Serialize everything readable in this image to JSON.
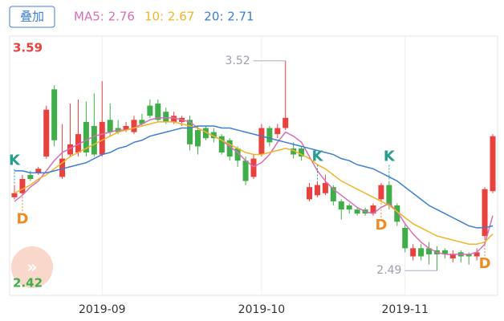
{
  "chart_data": {
    "type": "candlestick",
    "button": "叠加",
    "categories": [
      null,
      null,
      null,
      null,
      null,
      null,
      null,
      null,
      null,
      null,
      null,
      "2019-09",
      null,
      null,
      null,
      null,
      null,
      null,
      null,
      null,
      null,
      null,
      null,
      null,
      null,
      null,
      null,
      null,
      null,
      null,
      null,
      "2019-10",
      null,
      null,
      null,
      null,
      null,
      null,
      null,
      null,
      null,
      null,
      null,
      null,
      null,
      null,
      null,
      null,
      null,
      "2019-11",
      null,
      null,
      null,
      null,
      null,
      null,
      null,
      null,
      null,
      null,
      null
    ],
    "open": [
      2.85,
      2.87,
      2.96,
      2.97,
      3.05,
      3.38,
      2.95,
      3.06,
      3.07,
      3.22,
      3.2,
      3.06,
      3.23,
      3.19,
      3.18,
      3.17,
      3.23,
      3.3,
      3.31,
      3.27,
      3.22,
      3.22,
      3.23,
      3.18,
      3.19,
      3.17,
      3.15,
      3.13,
      3.09,
      3.03,
      2.95,
      3.06,
      3.19,
      3.16,
      3.19,
      3.09,
      3.09,
      2.84,
      2.86,
      2.87,
      2.9,
      2.83,
      2.81,
      2.79,
      2.79,
      2.77,
      2.84,
      2.91,
      2.81,
      2.7,
      2.56,
      2.6,
      2.6,
      2.59,
      2.59,
      2.55,
      2.58,
      2.57,
      2.56,
      2.66,
      2.88
    ],
    "high": [
      2.91,
      2.96,
      2.98,
      3.0,
      3.3,
      3.4,
      3.21,
      3.31,
      3.33,
      3.32,
      3.36,
      3.42,
      3.31,
      3.23,
      3.22,
      3.25,
      3.26,
      3.33,
      3.33,
      3.29,
      3.27,
      3.25,
      3.25,
      3.2,
      3.2,
      3.19,
      3.16,
      3.14,
      3.1,
      3.05,
      3.06,
      3.21,
      3.2,
      3.21,
      3.52,
      3.12,
      3.1,
      2.92,
      2.93,
      2.96,
      2.91,
      2.84,
      2.82,
      2.8,
      2.8,
      2.82,
      2.92,
      2.93,
      2.82,
      2.72,
      2.62,
      2.62,
      2.63,
      2.61,
      2.6,
      2.59,
      2.59,
      2.58,
      2.6,
      2.9,
      3.16
    ],
    "low": [
      2.84,
      2.86,
      2.93,
      2.96,
      3.04,
      3.1,
      2.94,
      3.05,
      3.05,
      3.05,
      3.05,
      3.05,
      3.15,
      3.16,
      3.17,
      3.16,
      3.2,
      3.24,
      3.22,
      3.21,
      3.21,
      3.2,
      3.08,
      3.06,
      3.13,
      3.12,
      3.06,
      3.03,
      3.0,
      2.91,
      2.94,
      3.05,
      3.1,
      3.14,
      3.18,
      3.04,
      3.03,
      2.83,
      2.85,
      2.86,
      2.81,
      2.74,
      2.77,
      2.76,
      2.76,
      2.76,
      2.83,
      2.79,
      2.71,
      2.58,
      2.54,
      2.54,
      2.52,
      2.49,
      2.55,
      2.53,
      2.53,
      2.52,
      2.54,
      2.64,
      2.87
    ],
    "close": [
      2.87,
      2.94,
      2.94,
      2.99,
      3.28,
      3.13,
      3.04,
      3.11,
      3.16,
      3.07,
      3.06,
      3.22,
      3.17,
      3.17,
      3.2,
      3.23,
      3.21,
      3.25,
      3.23,
      3.22,
      3.25,
      3.24,
      3.11,
      3.1,
      3.14,
      3.14,
      3.07,
      3.05,
      3.03,
      2.93,
      3.04,
      3.19,
      3.12,
      3.19,
      3.24,
      3.06,
      3.05,
      2.9,
      2.91,
      2.92,
      2.83,
      2.79,
      2.79,
      2.77,
      2.77,
      2.81,
      2.91,
      2.81,
      2.73,
      2.6,
      2.6,
      2.56,
      2.57,
      2.57,
      2.57,
      2.57,
      2.56,
      2.56,
      2.58,
      2.89,
      3.15
    ],
    "up_color": "#e8413e",
    "down_color": "#3fae49",
    "series": [
      {
        "name": "MA5: 2.76",
        "color": "#d66fb6",
        "values": [
          2.83,
          2.86,
          2.9,
          2.93,
          2.98,
          3.03,
          3.07,
          3.09,
          3.11,
          3.13,
          3.15,
          3.16,
          3.17,
          3.18,
          3.18,
          3.19,
          3.21,
          3.23,
          3.24,
          3.24,
          3.24,
          3.23,
          3.22,
          3.19,
          3.17,
          3.15,
          3.13,
          3.1,
          3.07,
          3.03,
          3.0,
          3.02,
          3.06,
          3.12,
          3.17,
          3.15,
          3.12,
          3.05,
          2.98,
          2.93,
          2.89,
          2.86,
          2.83,
          2.8,
          2.78,
          2.77,
          2.8,
          2.82,
          2.78,
          2.72,
          2.67,
          2.63,
          2.6,
          2.58,
          2.57,
          2.57,
          2.57,
          2.57,
          2.58,
          2.62,
          2.76
        ]
      },
      {
        "name": "10: 2.67",
        "color": "#f0b429",
        "values": [
          2.87,
          2.89,
          2.91,
          2.94,
          2.96,
          2.99,
          3.02,
          3.05,
          3.07,
          3.09,
          3.11,
          3.13,
          3.15,
          3.17,
          3.18,
          3.19,
          3.2,
          3.21,
          3.22,
          3.22,
          3.22,
          3.21,
          3.2,
          3.19,
          3.17,
          3.15,
          3.13,
          3.11,
          3.09,
          3.07,
          3.06,
          3.06,
          3.07,
          3.08,
          3.09,
          3.08,
          3.06,
          3.04,
          3.01,
          2.99,
          2.96,
          2.93,
          2.91,
          2.89,
          2.87,
          2.85,
          2.83,
          2.81,
          2.78,
          2.75,
          2.72,
          2.7,
          2.68,
          2.66,
          2.65,
          2.64,
          2.63,
          2.62,
          2.62,
          2.63,
          2.67
        ]
      },
      {
        "name": "20: 2.71",
        "color": "#3d7fd1",
        "values": [
          2.98,
          2.98,
          2.97,
          2.97,
          2.97,
          2.98,
          2.99,
          3.0,
          3.01,
          3.02,
          3.04,
          3.06,
          3.07,
          3.09,
          3.1,
          3.12,
          3.13,
          3.15,
          3.16,
          3.17,
          3.18,
          3.19,
          3.19,
          3.2,
          3.2,
          3.2,
          3.19,
          3.19,
          3.18,
          3.17,
          3.16,
          3.15,
          3.14,
          3.13,
          3.12,
          3.11,
          3.1,
          3.09,
          3.08,
          3.07,
          3.06,
          3.04,
          3.03,
          3.01,
          3.0,
          2.99,
          2.97,
          2.95,
          2.93,
          2.9,
          2.87,
          2.84,
          2.81,
          2.79,
          2.77,
          2.75,
          2.73,
          2.71,
          2.7,
          2.7,
          2.71
        ]
      }
    ],
    "signals": [
      {
        "text": "K",
        "at": 0,
        "color": "#2a9d8f"
      },
      {
        "text": "D",
        "at": 1,
        "color": "#f08a24"
      },
      {
        "text": "K",
        "at": 38,
        "color": "#2a9d8f"
      },
      {
        "text": "D",
        "at": 46,
        "color": "#f08a24"
      },
      {
        "text": "K",
        "at": 47,
        "color": "#2a9d8f"
      },
      {
        "text": "D",
        "at": 59,
        "color": "#f08a24"
      }
    ],
    "ylim": [
      2.42,
      3.59
    ],
    "yticks": [
      2.42,
      3.59
    ]
  }
}
